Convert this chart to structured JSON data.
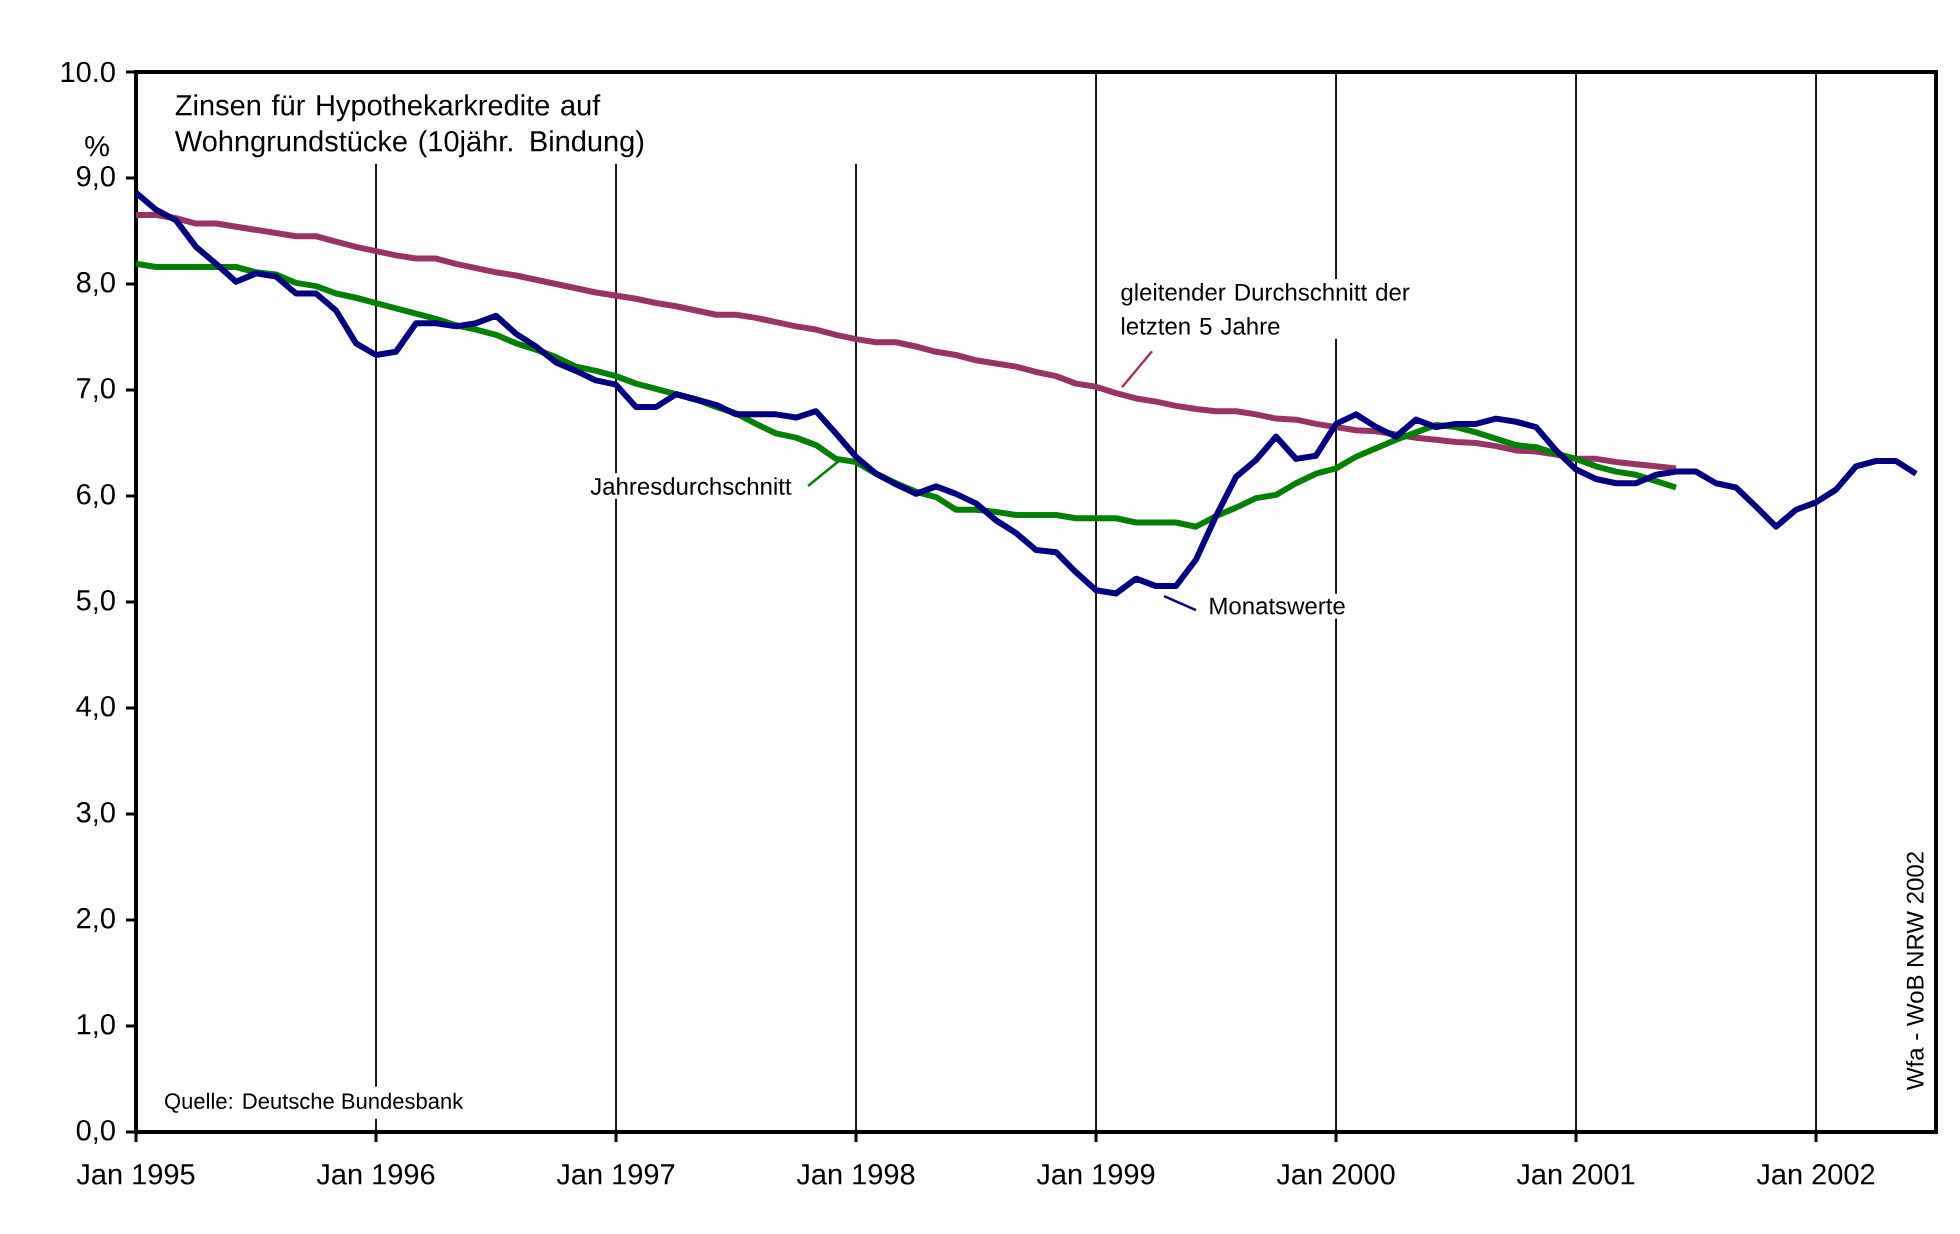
{
  "chart_data": {
    "type": "line",
    "title": "Zinsen für Hypothekarkredite auf Wohngrundstücke (10jähr. Bindung)",
    "ylabel": "%",
    "x": [
      "1995-01",
      "1995-02",
      "1995-03",
      "1995-04",
      "1995-05",
      "1995-06",
      "1995-07",
      "1995-08",
      "1995-09",
      "1995-10",
      "1995-11",
      "1995-12",
      "1996-01",
      "1996-02",
      "1996-03",
      "1996-04",
      "1996-05",
      "1996-06",
      "1996-07",
      "1996-08",
      "1996-09",
      "1996-10",
      "1996-11",
      "1996-12",
      "1997-01",
      "1997-02",
      "1997-03",
      "1997-04",
      "1997-05",
      "1997-06",
      "1997-07",
      "1997-08",
      "1997-09",
      "1997-10",
      "1997-11",
      "1997-12",
      "1998-01",
      "1998-02",
      "1998-03",
      "1998-04",
      "1998-05",
      "1998-06",
      "1998-07",
      "1998-08",
      "1998-09",
      "1998-10",
      "1998-11",
      "1998-12",
      "1999-01",
      "1999-02",
      "1999-03",
      "1999-04",
      "1999-05",
      "1999-06",
      "1999-07",
      "1999-08",
      "1999-09",
      "1999-10",
      "1999-11",
      "1999-12",
      "2000-01",
      "2000-02",
      "2000-03",
      "2000-04",
      "2000-05",
      "2000-06",
      "2000-07",
      "2000-08",
      "2000-09",
      "2000-10",
      "2000-11",
      "2000-12",
      "2001-01",
      "2001-02",
      "2001-03",
      "2001-04",
      "2001-05",
      "2001-06",
      "2001-07",
      "2001-08",
      "2001-09",
      "2001-10",
      "2001-11",
      "2001-12",
      "2002-01",
      "2002-02",
      "2002-03",
      "2002-04",
      "2002-05",
      "2002-06"
    ],
    "series": [
      {
        "name": "gleitender Durchschnitt der letzten 5 Jahre",
        "color": "#993366",
        "values": [
          8.65,
          8.65,
          8.62,
          8.57,
          8.57,
          8.54,
          8.51,
          8.48,
          8.45,
          8.45,
          8.4,
          8.35,
          8.31,
          8.27,
          8.24,
          8.24,
          8.19,
          8.15,
          8.11,
          8.08,
          8.04,
          8.0,
          7.96,
          7.92,
          7.89,
          7.86,
          7.82,
          7.79,
          7.75,
          7.71,
          7.71,
          7.68,
          7.64,
          7.6,
          7.57,
          7.52,
          7.48,
          7.45,
          7.45,
          7.41,
          7.36,
          7.33,
          7.28,
          7.25,
          7.22,
          7.17,
          7.13,
          7.06,
          7.03,
          6.97,
          6.92,
          6.89,
          6.85,
          6.82,
          6.8,
          6.8,
          6.77,
          6.73,
          6.72,
          6.68,
          6.65,
          6.62,
          6.61,
          6.58,
          6.55,
          6.53,
          6.51,
          6.5,
          6.47,
          6.43,
          6.42,
          6.39,
          6.35,
          6.35,
          6.32,
          6.3,
          6.28,
          6.26,
          null,
          null,
          null,
          null,
          null,
          null,
          null,
          null,
          null,
          null,
          null,
          null
        ]
      },
      {
        "name": "Jahresdurchschnitt",
        "color": "#008000",
        "values": [
          8.19,
          8.16,
          8.16,
          8.16,
          8.16,
          8.16,
          8.11,
          8.09,
          8.01,
          7.98,
          7.91,
          7.87,
          7.82,
          7.77,
          7.72,
          7.67,
          7.61,
          7.57,
          7.52,
          7.44,
          7.38,
          7.31,
          7.22,
          7.18,
          7.13,
          7.06,
          7.01,
          6.96,
          6.91,
          6.84,
          6.78,
          6.68,
          6.59,
          6.55,
          6.48,
          6.35,
          6.32,
          6.21,
          6.12,
          6.04,
          5.99,
          5.87,
          5.87,
          5.85,
          5.82,
          5.82,
          5.82,
          5.79,
          5.79,
          5.79,
          5.75,
          5.75,
          5.75,
          5.71,
          5.81,
          5.89,
          5.98,
          6.01,
          6.12,
          6.21,
          6.26,
          6.37,
          6.45,
          6.53,
          6.6,
          6.67,
          6.65,
          6.6,
          6.54,
          6.48,
          6.46,
          6.4,
          6.35,
          6.28,
          6.23,
          6.2,
          6.14,
          6.08,
          null,
          null,
          null,
          null,
          null,
          null,
          null,
          null,
          null,
          null,
          null,
          null
        ]
      },
      {
        "name": "Monatswerte",
        "color": "#000080",
        "values": [
          8.86,
          8.7,
          8.6,
          8.35,
          8.19,
          8.02,
          8.1,
          8.07,
          7.91,
          7.91,
          7.75,
          7.44,
          7.33,
          7.36,
          7.63,
          7.63,
          7.6,
          7.63,
          7.7,
          7.53,
          7.41,
          7.26,
          7.18,
          7.09,
          7.05,
          6.84,
          6.84,
          6.96,
          6.91,
          6.86,
          6.77,
          6.77,
          6.77,
          6.74,
          6.8,
          6.59,
          6.37,
          6.21,
          6.11,
          6.02,
          6.09,
          6.02,
          5.93,
          5.77,
          5.65,
          5.49,
          5.47,
          5.28,
          5.11,
          5.08,
          5.22,
          5.15,
          5.15,
          5.4,
          5.81,
          6.18,
          6.34,
          6.56,
          6.35,
          6.38,
          6.68,
          6.77,
          6.65,
          6.56,
          6.72,
          6.65,
          6.68,
          6.68,
          6.73,
          6.7,
          6.65,
          6.43,
          6.25,
          6.16,
          6.12,
          6.12,
          6.2,
          6.23,
          6.23,
          6.12,
          6.08,
          5.9,
          5.71,
          5.87,
          5.94,
          6.06,
          6.28,
          6.33,
          6.33,
          6.21
        ]
      }
    ],
    "xlim": [
      "1995-01",
      "2002-07"
    ],
    "xticks": [
      {
        "value": "1995-01",
        "label": "Jan 1995"
      },
      {
        "value": "1996-01",
        "label": "Jan 1996"
      },
      {
        "value": "1997-01",
        "label": "Jan 1997"
      },
      {
        "value": "1998-01",
        "label": "Jan 1998"
      },
      {
        "value": "1999-01",
        "label": "Jan 1999"
      },
      {
        "value": "2000-01",
        "label": "Jan 2000"
      },
      {
        "value": "2001-01",
        "label": "Jan 2001"
      },
      {
        "value": "2002-01",
        "label": "Jan 2002"
      }
    ],
    "ylim": [
      0,
      10
    ],
    "yticks": [
      {
        "value": 0,
        "label": "0,0"
      },
      {
        "value": 1,
        "label": "1,0"
      },
      {
        "value": 2,
        "label": "2,0"
      },
      {
        "value": 3,
        "label": "3,0"
      },
      {
        "value": 4,
        "label": "4,0"
      },
      {
        "value": 5,
        "label": "5,0"
      },
      {
        "value": 6,
        "label": "6,0"
      },
      {
        "value": 7,
        "label": "7,0"
      },
      {
        "value": 8,
        "label": "8,0"
      },
      {
        "value": 9,
        "label": "9,0"
      },
      {
        "value": 10,
        "label": "10.0"
      }
    ],
    "grid": "x",
    "annotations": [
      "Quelle: Deutsche Bundesbank",
      "Wfa - WoB NRW  2002"
    ]
  }
}
